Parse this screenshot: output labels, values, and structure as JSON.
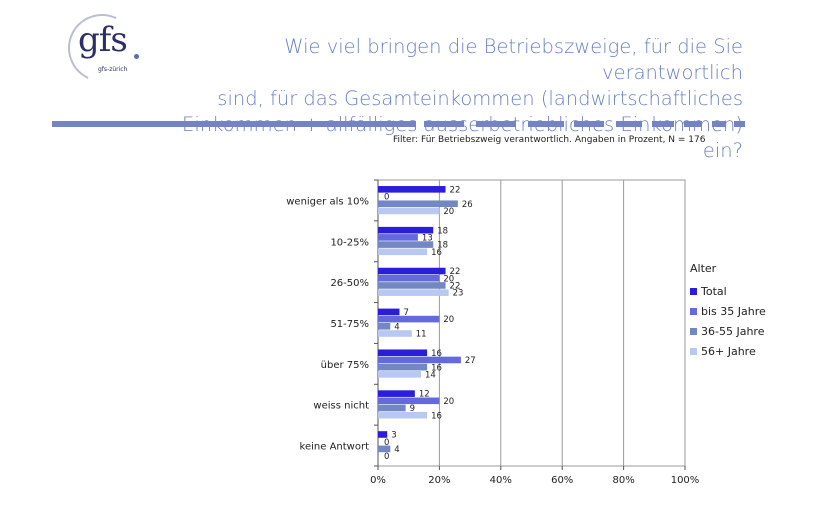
{
  "header": {
    "logo_text": "gfs",
    "logo_sub": "gfs-zürich",
    "title_lines": [
      "Wie viel bringen die Betriebszweige, für die Sie verantwortlich",
      "sind, für das Gesamteinkommen (landwirtschaftliches",
      "Einkommen + allfälliges ausserbetriebliches Einkommen) ein?"
    ],
    "filter": "Filter: Für Betriebszweig verantwortlich. Angaben in Prozent, N = 176"
  },
  "colors": {
    "title": "#6a80c4",
    "rule": "#7483c3",
    "series": [
      "#2a1edb",
      "#6469dc",
      "#7287c4",
      "#b8c8f0"
    ]
  },
  "chart_data": {
    "type": "bar",
    "orientation": "horizontal",
    "categories": [
      "weniger als 10%",
      "10-25%",
      "26-50%",
      "51-75%",
      "über 75%",
      "weiss nicht",
      "keine Antwort"
    ],
    "series": [
      {
        "name": "Total",
        "values": [
          22,
          18,
          22,
          7,
          16,
          12,
          3
        ]
      },
      {
        "name": "bis 35 Jahre",
        "values": [
          0,
          13,
          20,
          20,
          27,
          20,
          0
        ]
      },
      {
        "name": "36-55 Jahre",
        "values": [
          26,
          18,
          22,
          4,
          16,
          9,
          4
        ]
      },
      {
        "name": "56+ Jahre",
        "values": [
          20,
          16,
          23,
          11,
          14,
          16,
          0
        ]
      }
    ],
    "xlim": [
      0,
      100
    ],
    "xticks": [
      "0%",
      "20%",
      "40%",
      "60%",
      "80%",
      "100%"
    ],
    "grid": true,
    "legend_title": "Alter",
    "legend_position": "right"
  }
}
